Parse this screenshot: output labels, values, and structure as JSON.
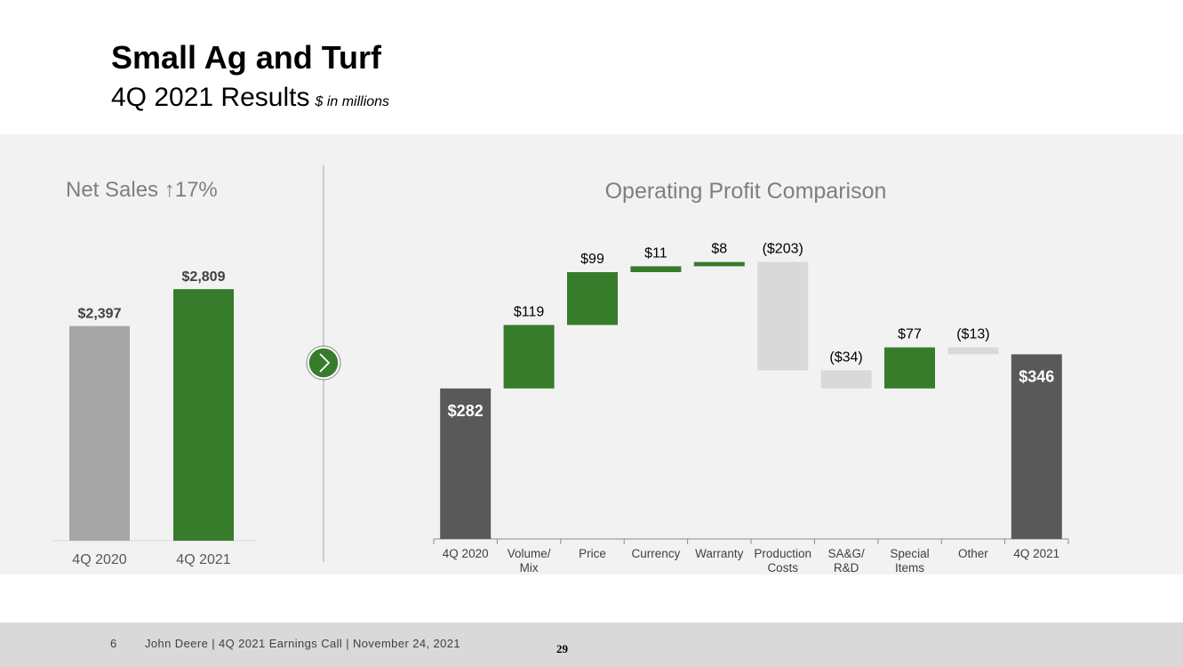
{
  "header": {
    "title": "Small Ag and Turf",
    "subtitle": "4Q 2021 Results",
    "unit_note": "$ in millions"
  },
  "footer": {
    "page": "6",
    "text": "John Deere | 4Q 2021 Earnings Call | November 24, 2021",
    "number": "29"
  },
  "colors": {
    "green": "#367c2b",
    "gray_bar": "#a6a6a6",
    "dark_bar": "#595959",
    "neg_bar": "#d9d9d9",
    "panel": "#f2f2f2"
  },
  "nav_icon": "chevron-right-icon",
  "chart_data": [
    {
      "type": "bar",
      "title": "Net Sales ↑17%",
      "categories": [
        "4Q 2020",
        "4Q 2021"
      ],
      "values": [
        2397,
        2809
      ],
      "labels": [
        "$2,397",
        "$2,809"
      ],
      "colors": [
        "#a6a6a6",
        "#367c2b"
      ]
    },
    {
      "type": "waterfall",
      "title": "Operating Profit Comparison",
      "categories": [
        [
          "4Q 2020"
        ],
        [
          "Volume/",
          "Mix"
        ],
        [
          "Price"
        ],
        [
          "Currency"
        ],
        [
          "Warranty"
        ],
        [
          "Production",
          "Costs"
        ],
        [
          "SA&G/",
          "R&D"
        ],
        [
          "Special",
          "Items"
        ],
        [
          "Other"
        ],
        [
          "4Q 2021"
        ]
      ],
      "values": [
        282,
        119,
        99,
        11,
        8,
        -203,
        -34,
        77,
        -13,
        346
      ],
      "labels": [
        "$282",
        "$119",
        "$99",
        "$11",
        "$8",
        "($203)",
        "($34)",
        "$77",
        "($13)",
        "$346"
      ],
      "kinds": [
        "total",
        "delta",
        "delta",
        "delta",
        "delta",
        "delta",
        "delta",
        "delta",
        "delta",
        "total"
      ]
    }
  ]
}
